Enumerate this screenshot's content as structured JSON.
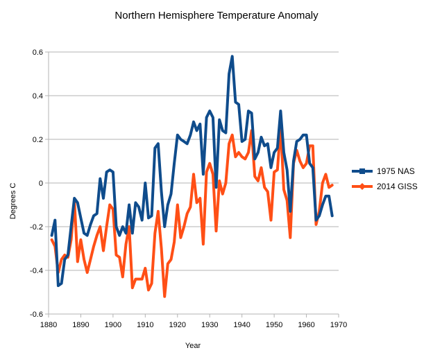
{
  "chart_data": {
    "type": "line",
    "title": "Northern Hemisphere Temperature Anomaly",
    "xlabel": "Year",
    "ylabel": "Degrees C",
    "xlim": [
      1880,
      1970
    ],
    "ylim": [
      -0.6,
      0.6
    ],
    "xticks": [
      1880,
      1890,
      1900,
      1910,
      1920,
      1930,
      1940,
      1950,
      1960,
      1970
    ],
    "yticks": [
      -0.6,
      -0.4,
      -0.2,
      0,
      0.2,
      0.4,
      0.6
    ],
    "grid": "horizontal",
    "legend": "right",
    "series": [
      {
        "name": "1975 NAS",
        "color": "#0f4c8c",
        "marker": "square",
        "points": [
          [
            1881,
            -0.24
          ],
          [
            1882,
            -0.17
          ],
          [
            1883,
            -0.47
          ],
          [
            1884,
            -0.46
          ],
          [
            1885,
            -0.35
          ],
          [
            1886,
            -0.33
          ],
          [
            1887,
            -0.2
          ],
          [
            1888,
            -0.07
          ],
          [
            1889,
            -0.09
          ],
          [
            1890,
            -0.16
          ],
          [
            1891,
            -0.23
          ],
          [
            1892,
            -0.24
          ],
          [
            1893,
            -0.19
          ],
          [
            1894,
            -0.15
          ],
          [
            1895,
            -0.14
          ],
          [
            1896,
            0.02
          ],
          [
            1897,
            -0.07
          ],
          [
            1898,
            0.05
          ],
          [
            1899,
            0.06
          ],
          [
            1900,
            0.05
          ],
          [
            1901,
            -0.2
          ],
          [
            1902,
            -0.24
          ],
          [
            1903,
            -0.2
          ],
          [
            1904,
            -0.23
          ],
          [
            1905,
            -0.1
          ],
          [
            1906,
            -0.23
          ],
          [
            1907,
            -0.09
          ],
          [
            1908,
            -0.11
          ],
          [
            1909,
            -0.17
          ],
          [
            1910,
            0.0
          ],
          [
            1911,
            -0.16
          ],
          [
            1912,
            -0.15
          ],
          [
            1913,
            0.16
          ],
          [
            1914,
            0.18
          ],
          [
            1915,
            -0.04
          ],
          [
            1916,
            -0.2
          ],
          [
            1917,
            -0.1
          ],
          [
            1918,
            -0.05
          ],
          [
            1919,
            0.09
          ],
          [
            1920,
            0.22
          ],
          [
            1921,
            0.2
          ],
          [
            1922,
            0.19
          ],
          [
            1923,
            0.18
          ],
          [
            1924,
            0.22
          ],
          [
            1925,
            0.28
          ],
          [
            1926,
            0.24
          ],
          [
            1927,
            0.27
          ],
          [
            1928,
            0.04
          ],
          [
            1929,
            0.3
          ],
          [
            1930,
            0.33
          ],
          [
            1931,
            0.3
          ],
          [
            1932,
            -0.02
          ],
          [
            1933,
            0.29
          ],
          [
            1934,
            0.24
          ],
          [
            1935,
            0.23
          ],
          [
            1936,
            0.5
          ],
          [
            1937,
            0.58
          ],
          [
            1938,
            0.37
          ],
          [
            1939,
            0.36
          ],
          [
            1940,
            0.19
          ],
          [
            1941,
            0.2
          ],
          [
            1942,
            0.33
          ],
          [
            1943,
            0.32
          ],
          [
            1944,
            0.11
          ],
          [
            1945,
            0.14
          ],
          [
            1946,
            0.21
          ],
          [
            1947,
            0.17
          ],
          [
            1948,
            0.18
          ],
          [
            1949,
            0.07
          ],
          [
            1950,
            0.14
          ],
          [
            1951,
            0.16
          ],
          [
            1952,
            0.33
          ],
          [
            1953,
            0.14
          ],
          [
            1954,
            0.06
          ],
          [
            1955,
            -0.13
          ],
          [
            1956,
            0.1
          ],
          [
            1957,
            0.19
          ],
          [
            1958,
            0.2
          ],
          [
            1959,
            0.22
          ],
          [
            1960,
            0.22
          ],
          [
            1961,
            0.09
          ],
          [
            1962,
            0.07
          ],
          [
            1963,
            -0.17
          ],
          [
            1964,
            -0.15
          ],
          [
            1965,
            -0.1
          ],
          [
            1966,
            -0.06
          ],
          [
            1967,
            -0.06
          ],
          [
            1968,
            -0.15
          ]
        ]
      },
      {
        "name": "2014 GISS",
        "color": "#ff4f16",
        "marker": "diamond",
        "points": [
          [
            1881,
            -0.26
          ],
          [
            1882,
            -0.29
          ],
          [
            1883,
            -0.41
          ],
          [
            1884,
            -0.35
          ],
          [
            1885,
            -0.33
          ],
          [
            1886,
            -0.34
          ],
          [
            1887,
            -0.26
          ],
          [
            1888,
            -0.08
          ],
          [
            1889,
            -0.36
          ],
          [
            1890,
            -0.26
          ],
          [
            1891,
            -0.35
          ],
          [
            1892,
            -0.41
          ],
          [
            1893,
            -0.35
          ],
          [
            1894,
            -0.29
          ],
          [
            1895,
            -0.24
          ],
          [
            1896,
            -0.2
          ],
          [
            1897,
            -0.31
          ],
          [
            1898,
            -0.2
          ],
          [
            1899,
            -0.1
          ],
          [
            1900,
            -0.12
          ],
          [
            1901,
            -0.33
          ],
          [
            1902,
            -0.34
          ],
          [
            1903,
            -0.43
          ],
          [
            1904,
            -0.28
          ],
          [
            1905,
            -0.2
          ],
          [
            1906,
            -0.48
          ],
          [
            1907,
            -0.44
          ],
          [
            1908,
            -0.44
          ],
          [
            1909,
            -0.44
          ],
          [
            1910,
            -0.39
          ],
          [
            1911,
            -0.49
          ],
          [
            1912,
            -0.46
          ],
          [
            1913,
            -0.23
          ],
          [
            1914,
            -0.13
          ],
          [
            1915,
            -0.3
          ],
          [
            1916,
            -0.52
          ],
          [
            1917,
            -0.37
          ],
          [
            1918,
            -0.35
          ],
          [
            1919,
            -0.27
          ],
          [
            1920,
            -0.1
          ],
          [
            1921,
            -0.25
          ],
          [
            1922,
            -0.2
          ],
          [
            1923,
            -0.14
          ],
          [
            1924,
            -0.11
          ],
          [
            1925,
            0.04
          ],
          [
            1926,
            -0.09
          ],
          [
            1927,
            -0.07
          ],
          [
            1928,
            -0.28
          ],
          [
            1929,
            0.05
          ],
          [
            1930,
            0.09
          ],
          [
            1931,
            0.04
          ],
          [
            1932,
            -0.22
          ],
          [
            1933,
            0.01
          ],
          [
            1934,
            -0.05
          ],
          [
            1935,
            0.0
          ],
          [
            1936,
            0.18
          ],
          [
            1937,
            0.22
          ],
          [
            1938,
            0.12
          ],
          [
            1939,
            0.14
          ],
          [
            1940,
            0.12
          ],
          [
            1941,
            0.11
          ],
          [
            1942,
            0.14
          ],
          [
            1943,
            0.24
          ],
          [
            1944,
            0.03
          ],
          [
            1945,
            0.01
          ],
          [
            1946,
            0.07
          ],
          [
            1947,
            -0.02
          ],
          [
            1948,
            -0.04
          ],
          [
            1949,
            -0.17
          ],
          [
            1950,
            0.05
          ],
          [
            1951,
            0.06
          ],
          [
            1952,
            0.26
          ],
          [
            1953,
            -0.03
          ],
          [
            1954,
            -0.08
          ],
          [
            1955,
            -0.25
          ],
          [
            1956,
            0.09
          ],
          [
            1957,
            0.15
          ],
          [
            1958,
            0.1
          ],
          [
            1959,
            0.07
          ],
          [
            1960,
            0.09
          ],
          [
            1961,
            0.17
          ],
          [
            1962,
            0.17
          ],
          [
            1963,
            -0.19
          ],
          [
            1964,
            -0.13
          ],
          [
            1965,
            0.0
          ],
          [
            1966,
            0.04
          ],
          [
            1967,
            -0.02
          ],
          [
            1968,
            -0.01
          ]
        ]
      }
    ]
  }
}
